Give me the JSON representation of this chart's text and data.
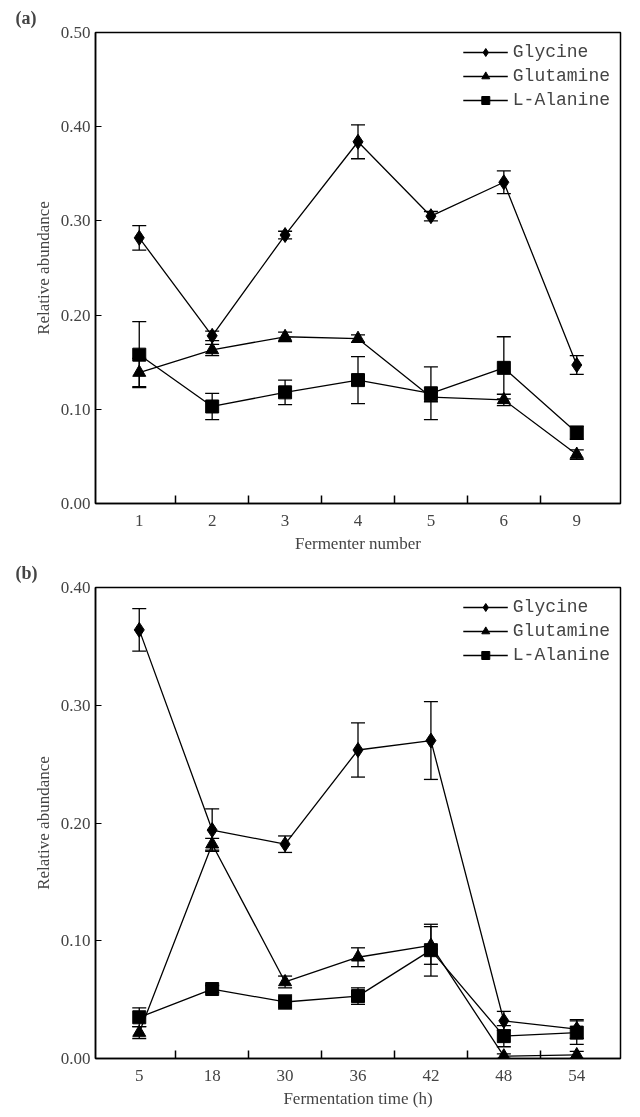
{
  "chart_data": [
    {
      "type": "line",
      "title": "(a)",
      "xlabel": "Fermenter number",
      "ylabel": "Relative abundance",
      "categories": [
        "1",
        "2",
        "3",
        "4",
        "5",
        "6",
        "9"
      ],
      "ylim": [
        0,
        0.5
      ],
      "yticks": [
        {
          "value": 0,
          "label": "0.00"
        },
        {
          "value": 0.1,
          "label": "0.10"
        },
        {
          "value": 0.2,
          "label": "0.20"
        },
        {
          "value": 0.3,
          "label": "0.30"
        },
        {
          "value": 0.4,
          "label": "0.40"
        },
        {
          "value": 0.5,
          "label": "0.50"
        }
      ],
      "grid": false,
      "legend": "top right",
      "line_style": "solid",
      "series": [
        {
          "name": "Glycine",
          "color": "#000000",
          "marker": "diamond",
          "values": [
            0.282,
            0.178,
            0.285,
            0.384,
            0.305,
            0.341,
            0.147
          ],
          "errors": [
            0.013,
            0.005,
            0.004,
            0.018,
            0.005,
            0.012,
            0.01
          ]
        },
        {
          "name": "Glutamine",
          "color": "#000000",
          "marker": "triangle",
          "values": [
            0.139,
            0.163,
            0.177,
            0.175,
            0.113,
            0.11,
            0.052
          ],
          "errors": [
            0.015,
            0.006,
            0.005,
            0.004,
            0.005,
            0.006,
            0.005
          ]
        },
        {
          "name": "L-Alanine",
          "color": "#000000",
          "marker": "square",
          "values": [
            0.158,
            0.103,
            0.118,
            0.131,
            0.117,
            0.144,
            0.075
          ],
          "errors": [
            0.035,
            0.014,
            0.013,
            0.025,
            0.028,
            0.033,
            0.007
          ]
        }
      ]
    },
    {
      "type": "line",
      "title": "(b)",
      "xlabel": "Fermentation time (h)",
      "ylabel": "Relative abundance",
      "categories": [
        "5",
        "18",
        "30",
        "36",
        "42",
        "48",
        "54"
      ],
      "ylim": [
        0,
        0.4
      ],
      "yticks": [
        {
          "value": 0,
          "label": "0.00"
        },
        {
          "value": 0.1,
          "label": "0.10"
        },
        {
          "value": 0.2,
          "label": "0.20"
        },
        {
          "value": 0.3,
          "label": "0.30"
        },
        {
          "value": 0.4,
          "label": "0.40"
        }
      ],
      "grid": false,
      "legend": "top right",
      "line_style": "solid",
      "series": [
        {
          "name": "Glycine",
          "color": "#000000",
          "marker": "diamond",
          "values": [
            0.364,
            0.194,
            0.182,
            0.262,
            0.27,
            0.032,
            0.025
          ],
          "errors": [
            0.018,
            0.018,
            0.007,
            0.023,
            0.033,
            0.008,
            0.008
          ]
        },
        {
          "name": "Glutamine",
          "color": "#000000",
          "marker": "triangle",
          "values": [
            0.022,
            0.182,
            0.065,
            0.086,
            0.096,
            0.002,
            0.003
          ],
          "errors": [
            0.005,
            0.005,
            0.005,
            0.008,
            0.016,
            0.002,
            0.003
          ]
        },
        {
          "name": "L-Alanine",
          "color": "#000000",
          "marker": "square",
          "values": [
            0.035,
            0.059,
            0.048,
            0.053,
            0.092,
            0.019,
            0.022
          ],
          "errors": [
            0.008,
            0.003,
            0.006,
            0.007,
            0.022,
            0.009,
            0.01
          ]
        }
      ]
    }
  ]
}
